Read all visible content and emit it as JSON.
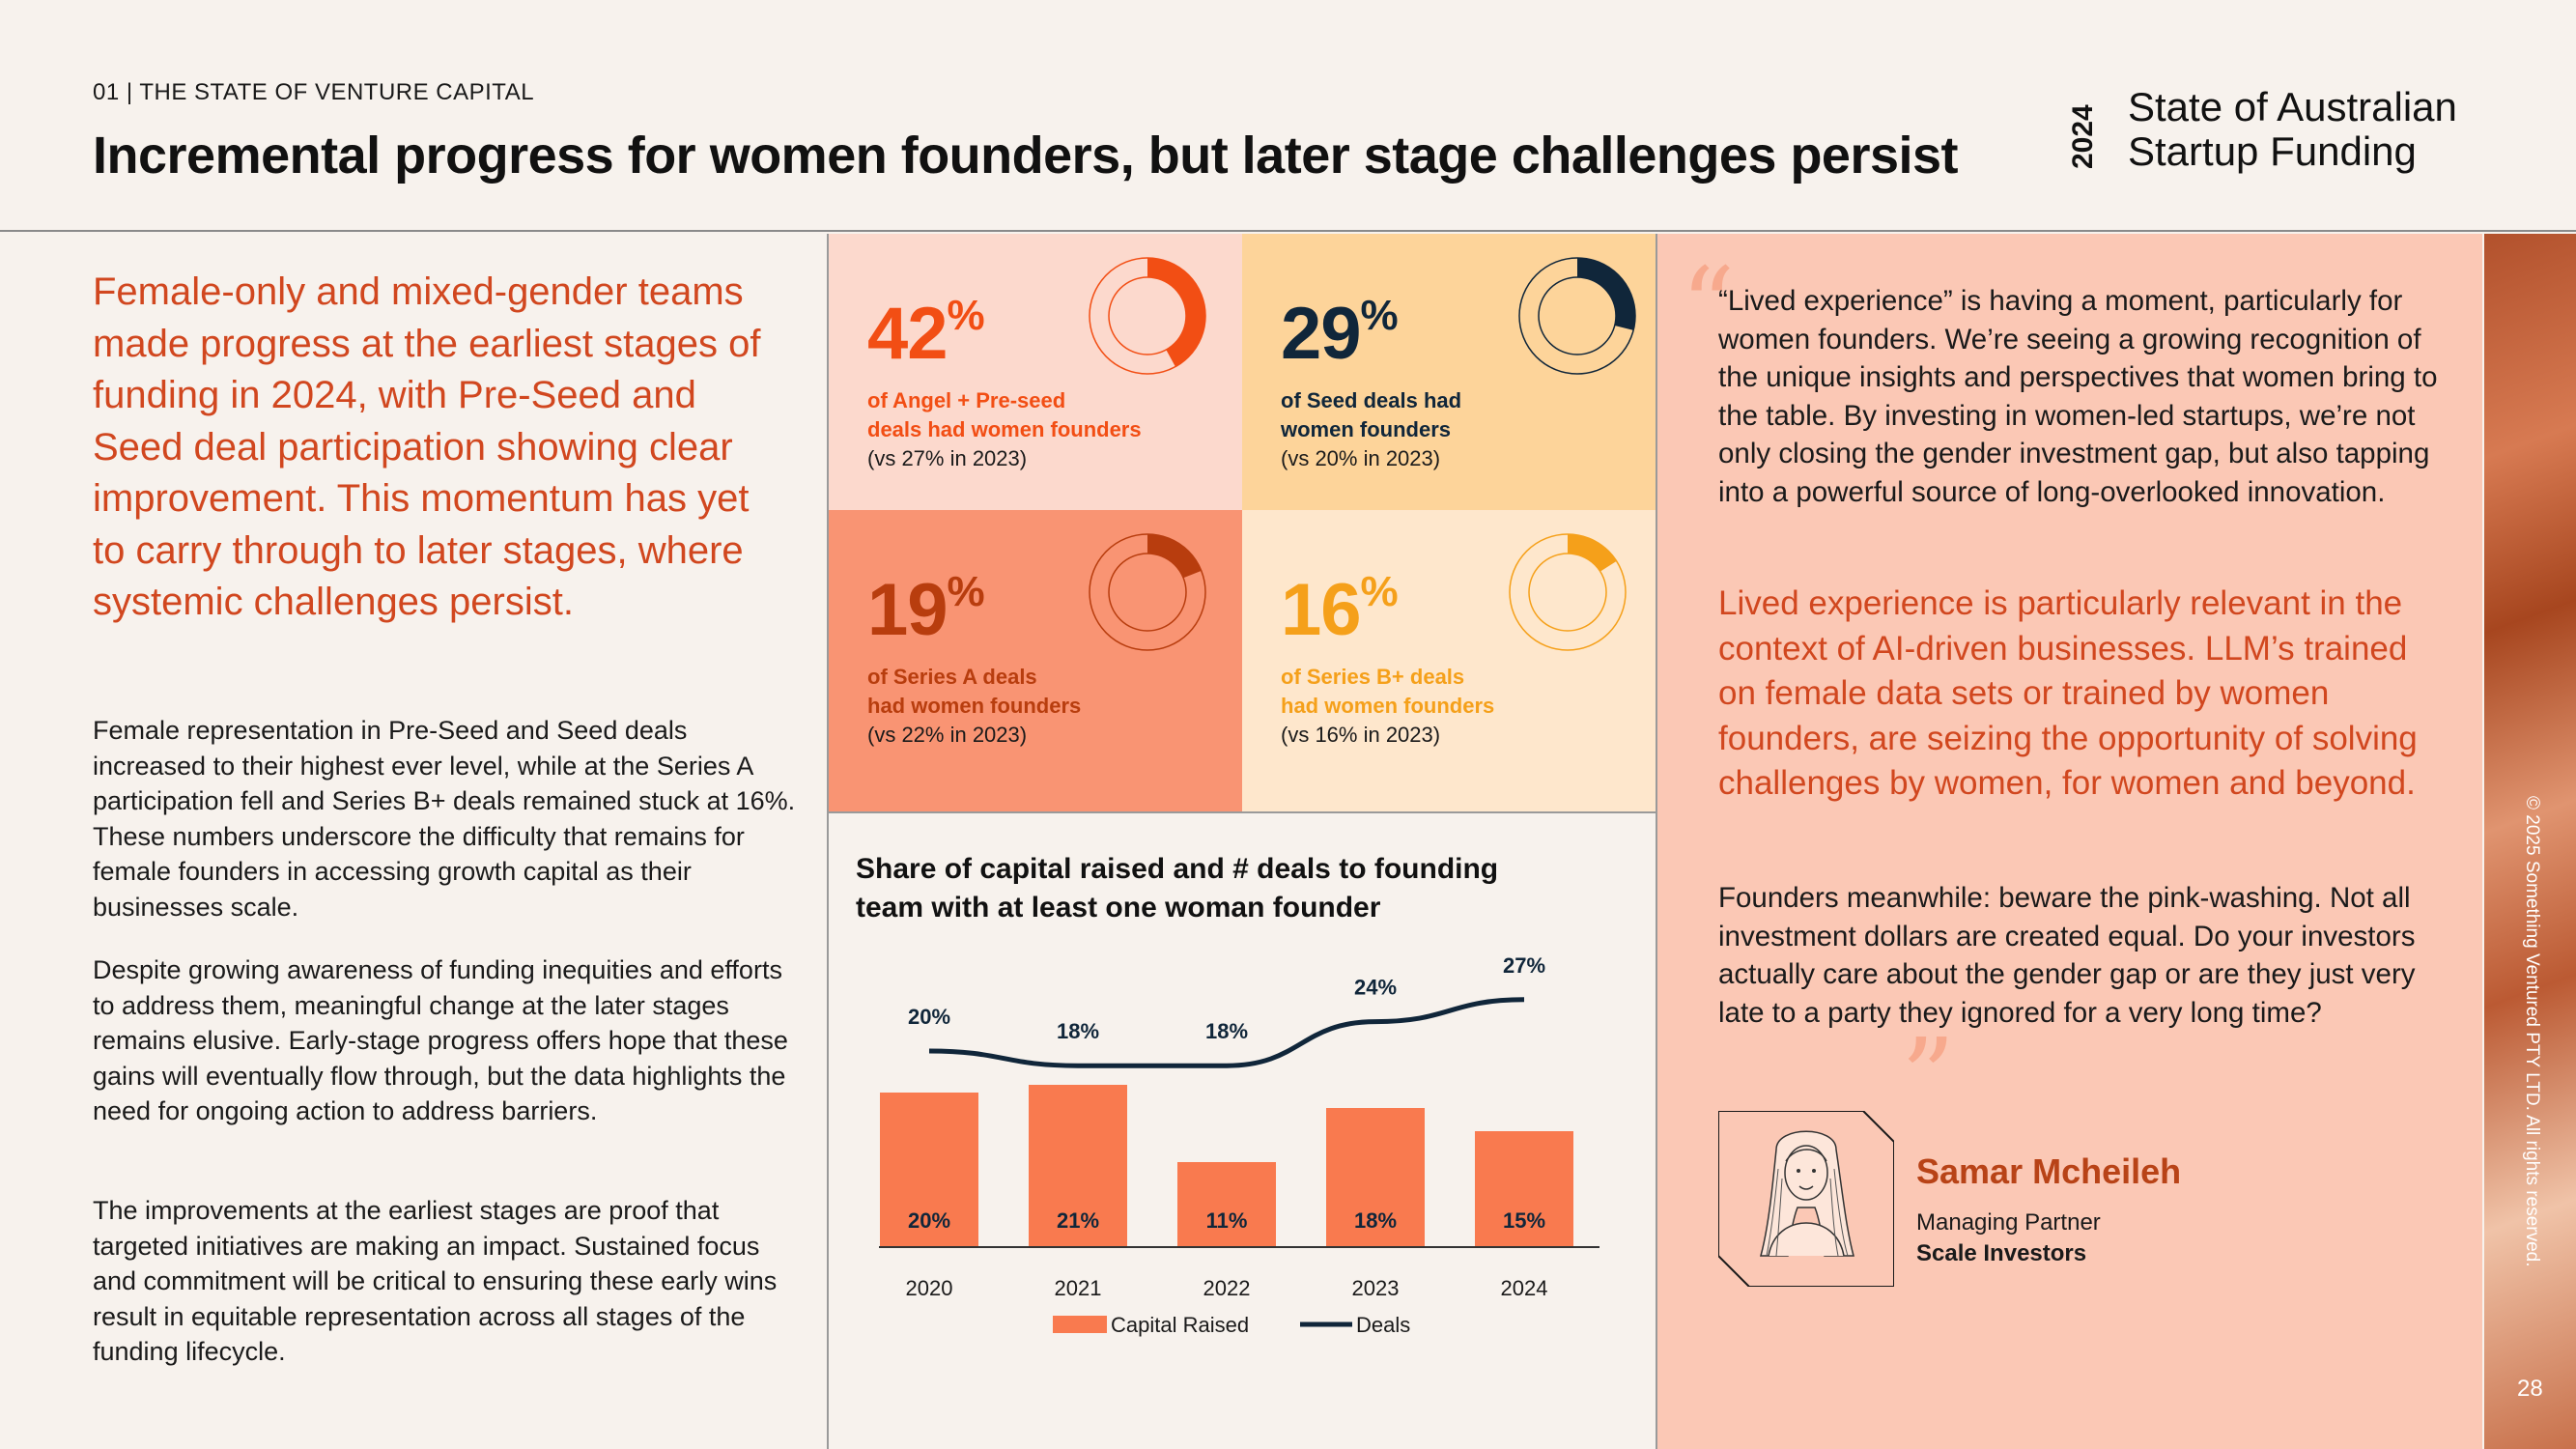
{
  "header": {
    "section": "01  |  THE STATE OF VENTURE CAPITAL",
    "title": "Incremental progress for women founders, but later stage challenges persist",
    "brand_year": "2024",
    "brand_line1": "State of Australian",
    "brand_line2": "Startup Funding"
  },
  "left": {
    "lead": "Female-only and mixed-gender teams made progress at the earliest stages of funding in 2024, with Pre-Seed and Seed deal participation showing clear improvement. This momentum has yet to carry through to later stages, where systemic challenges persist.",
    "p1": "Female representation in Pre-Seed and Seed deals increased to their highest ever level, while at the Series A participation fell and Series B+ deals  remained stuck at 16%. These numbers underscore the difficulty that remains for female founders in accessing growth capital as their businesses scale.",
    "p2": "Despite growing awareness of funding inequities and efforts to address them, meaningful change at the later stages remains elusive. Early-stage progress offers hope that these gains will eventually flow through, but the data highlights the need for ongoing action to address barriers.",
    "p3": "The improvements at the earliest stages are proof that targeted initiatives are making an impact. Sustained focus and commitment will be critical to ensuring these early wins result in equitable representation across all stages of the funding lifecycle."
  },
  "stats": [
    {
      "value": "42",
      "pct": "%",
      "fraction": 0.42,
      "line1": "of Angel + Pre-seed",
      "line2": "deals had women founders",
      "compare": "(vs 27% in 2023)",
      "color": "#f24e14",
      "bg": "#fcd9cd",
      "text_color": "#f24e14"
    },
    {
      "value": "29",
      "pct": "%",
      "fraction": 0.29,
      "line1": "of Seed deals had",
      "line2": "women founders",
      "compare": "(vs 20% in 2023)",
      "color": "#10263a",
      "bg": "#fdd49a",
      "text_color": "#10263a"
    },
    {
      "value": "19",
      "pct": "%",
      "fraction": 0.19,
      "line1": "of Series A deals",
      "line2": "had women founders",
      "compare": "(vs 22% in 2023)",
      "color": "#b83d0e",
      "bg": "#f99473",
      "text_color": "#b83d0e"
    },
    {
      "value": "16",
      "pct": "%",
      "fraction": 0.16,
      "line1": "of Series B+ deals",
      "line2": "had women founders",
      "compare": "(vs 16% in 2023)",
      "color": "#f5a01a",
      "bg": "#fee7cc",
      "text_color": "#f5a01a"
    }
  ],
  "chart_data": {
    "type": "bar",
    "title": "Share of capital raised and # deals to founding team with at least one woman founder",
    "categories": [
      "2020",
      "2021",
      "2022",
      "2023",
      "2024"
    ],
    "series": [
      {
        "name": "Capital Raised",
        "type": "bar",
        "values": [
          20,
          21,
          11,
          18,
          15
        ],
        "labels": [
          "20%",
          "21%",
          "11%",
          "18%",
          "15%"
        ],
        "color": "#f97a4f"
      },
      {
        "name": "Deals",
        "type": "line",
        "values": [
          20,
          18,
          18,
          24,
          27
        ],
        "labels": [
          "20%",
          "18%",
          "18%",
          "24%",
          "27%"
        ],
        "color": "#10263a"
      }
    ],
    "legend": "bottom"
  },
  "quote": {
    "open_mark": "“",
    "close_mark": "”",
    "p1": "“Lived experience” is having a moment, particularly for women founders. We’re seeing a growing recognition of the unique insights and perspectives that women bring to the table. By investing in women-led startups, we’re not only closing the gender investment gap, but also tapping into a powerful source of long-overlooked innovation.",
    "p2": "Lived experience is particularly relevant in the context of AI-driven businesses. LLM’s trained on female data sets or trained by women founders, are seizing the opportunity of solving challenges by women, for women and beyond.",
    "p3": "Founders meanwhile: beware the pink-washing. Not all investment dollars are created equal. Do your investors actually care about the gender gap or are they just very late to a party they ignored for a very long time?",
    "name": "Samar Mcheileh",
    "role": "Managing Partner",
    "org": "Scale Investors"
  },
  "footer": {
    "copyright": "© 2025 Something Ventured PTY LTD. All rights reserved.",
    "page": "28"
  }
}
